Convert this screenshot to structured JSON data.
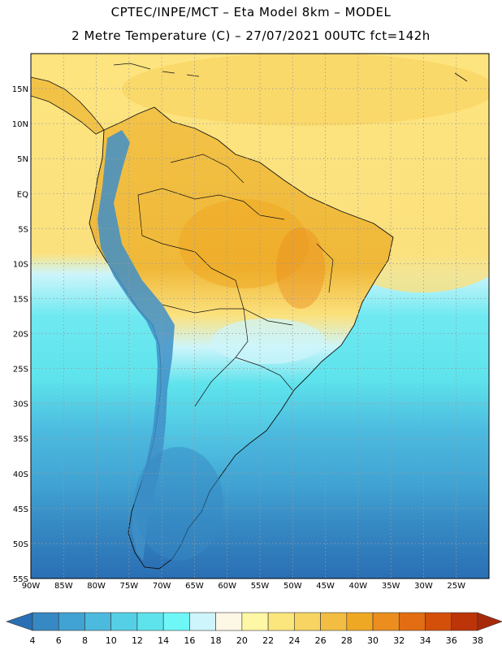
{
  "header": {
    "line1": "CPTEC/INPE/MCT –  Eta Model 8km – MODEL",
    "line2": "2 Metre Temperature (C) – 27/07/2021 00UTC fct=142h"
  },
  "map": {
    "lon_range": [
      -90,
      -20
    ],
    "lat_range": [
      -55,
      20
    ],
    "lon_ticks": [
      {
        "value": -90,
        "label": "90W"
      },
      {
        "value": -85,
        "label": "85W"
      },
      {
        "value": -80,
        "label": "80W"
      },
      {
        "value": -75,
        "label": "75W"
      },
      {
        "value": -70,
        "label": "70W"
      },
      {
        "value": -65,
        "label": "65W"
      },
      {
        "value": -60,
        "label": "60W"
      },
      {
        "value": -55,
        "label": "55W"
      },
      {
        "value": -50,
        "label": "50W"
      },
      {
        "value": -45,
        "label": "45W"
      },
      {
        "value": -40,
        "label": "40W"
      },
      {
        "value": -35,
        "label": "35W"
      },
      {
        "value": -30,
        "label": "30W"
      },
      {
        "value": -25,
        "label": "25W"
      }
    ],
    "lat_ticks": [
      {
        "value": 15,
        "label": "15N"
      },
      {
        "value": 10,
        "label": "10N"
      },
      {
        "value": 5,
        "label": "5N"
      },
      {
        "value": 0,
        "label": "EQ"
      },
      {
        "value": -5,
        "label": "5S"
      },
      {
        "value": -10,
        "label": "10S"
      },
      {
        "value": -15,
        "label": "15S"
      },
      {
        "value": -20,
        "label": "20S"
      },
      {
        "value": -25,
        "label": "25S"
      },
      {
        "value": -30,
        "label": "30S"
      },
      {
        "value": -35,
        "label": "35S"
      },
      {
        "value": -40,
        "label": "40S"
      },
      {
        "value": -45,
        "label": "45S"
      },
      {
        "value": -50,
        "label": "50S"
      },
      {
        "value": -55,
        "label": "55S"
      }
    ],
    "grid_lines": "dotted"
  },
  "colorbar": {
    "labels": [
      "4",
      "6",
      "8",
      "10",
      "12",
      "14",
      "16",
      "18",
      "20",
      "22",
      "24",
      "26",
      "28",
      "30",
      "32",
      "34",
      "36",
      "38"
    ],
    "colors": [
      "#2a6fb4",
      "#3689c3",
      "#41a3d3",
      "#4cbadf",
      "#55cfe6",
      "#5ee3ec",
      "#6ff7f7",
      "#cdf5fb",
      "#fdf8e6",
      "#fef7a5",
      "#fbe67d",
      "#f8d462",
      "#f2bd42",
      "#efa823",
      "#eb8e1f",
      "#e26d12",
      "#d44f0a",
      "#bd3408",
      "#a62a0a"
    ],
    "units": "C"
  },
  "colors": {
    "ocean_south": "#3a7fbd",
    "ocean_mid": "#55c8e3",
    "ocean_tropical": "#fbe17d",
    "land_hot": "#f2bd42",
    "andes": "#3f8fc8",
    "coast_line": "#111111"
  }
}
